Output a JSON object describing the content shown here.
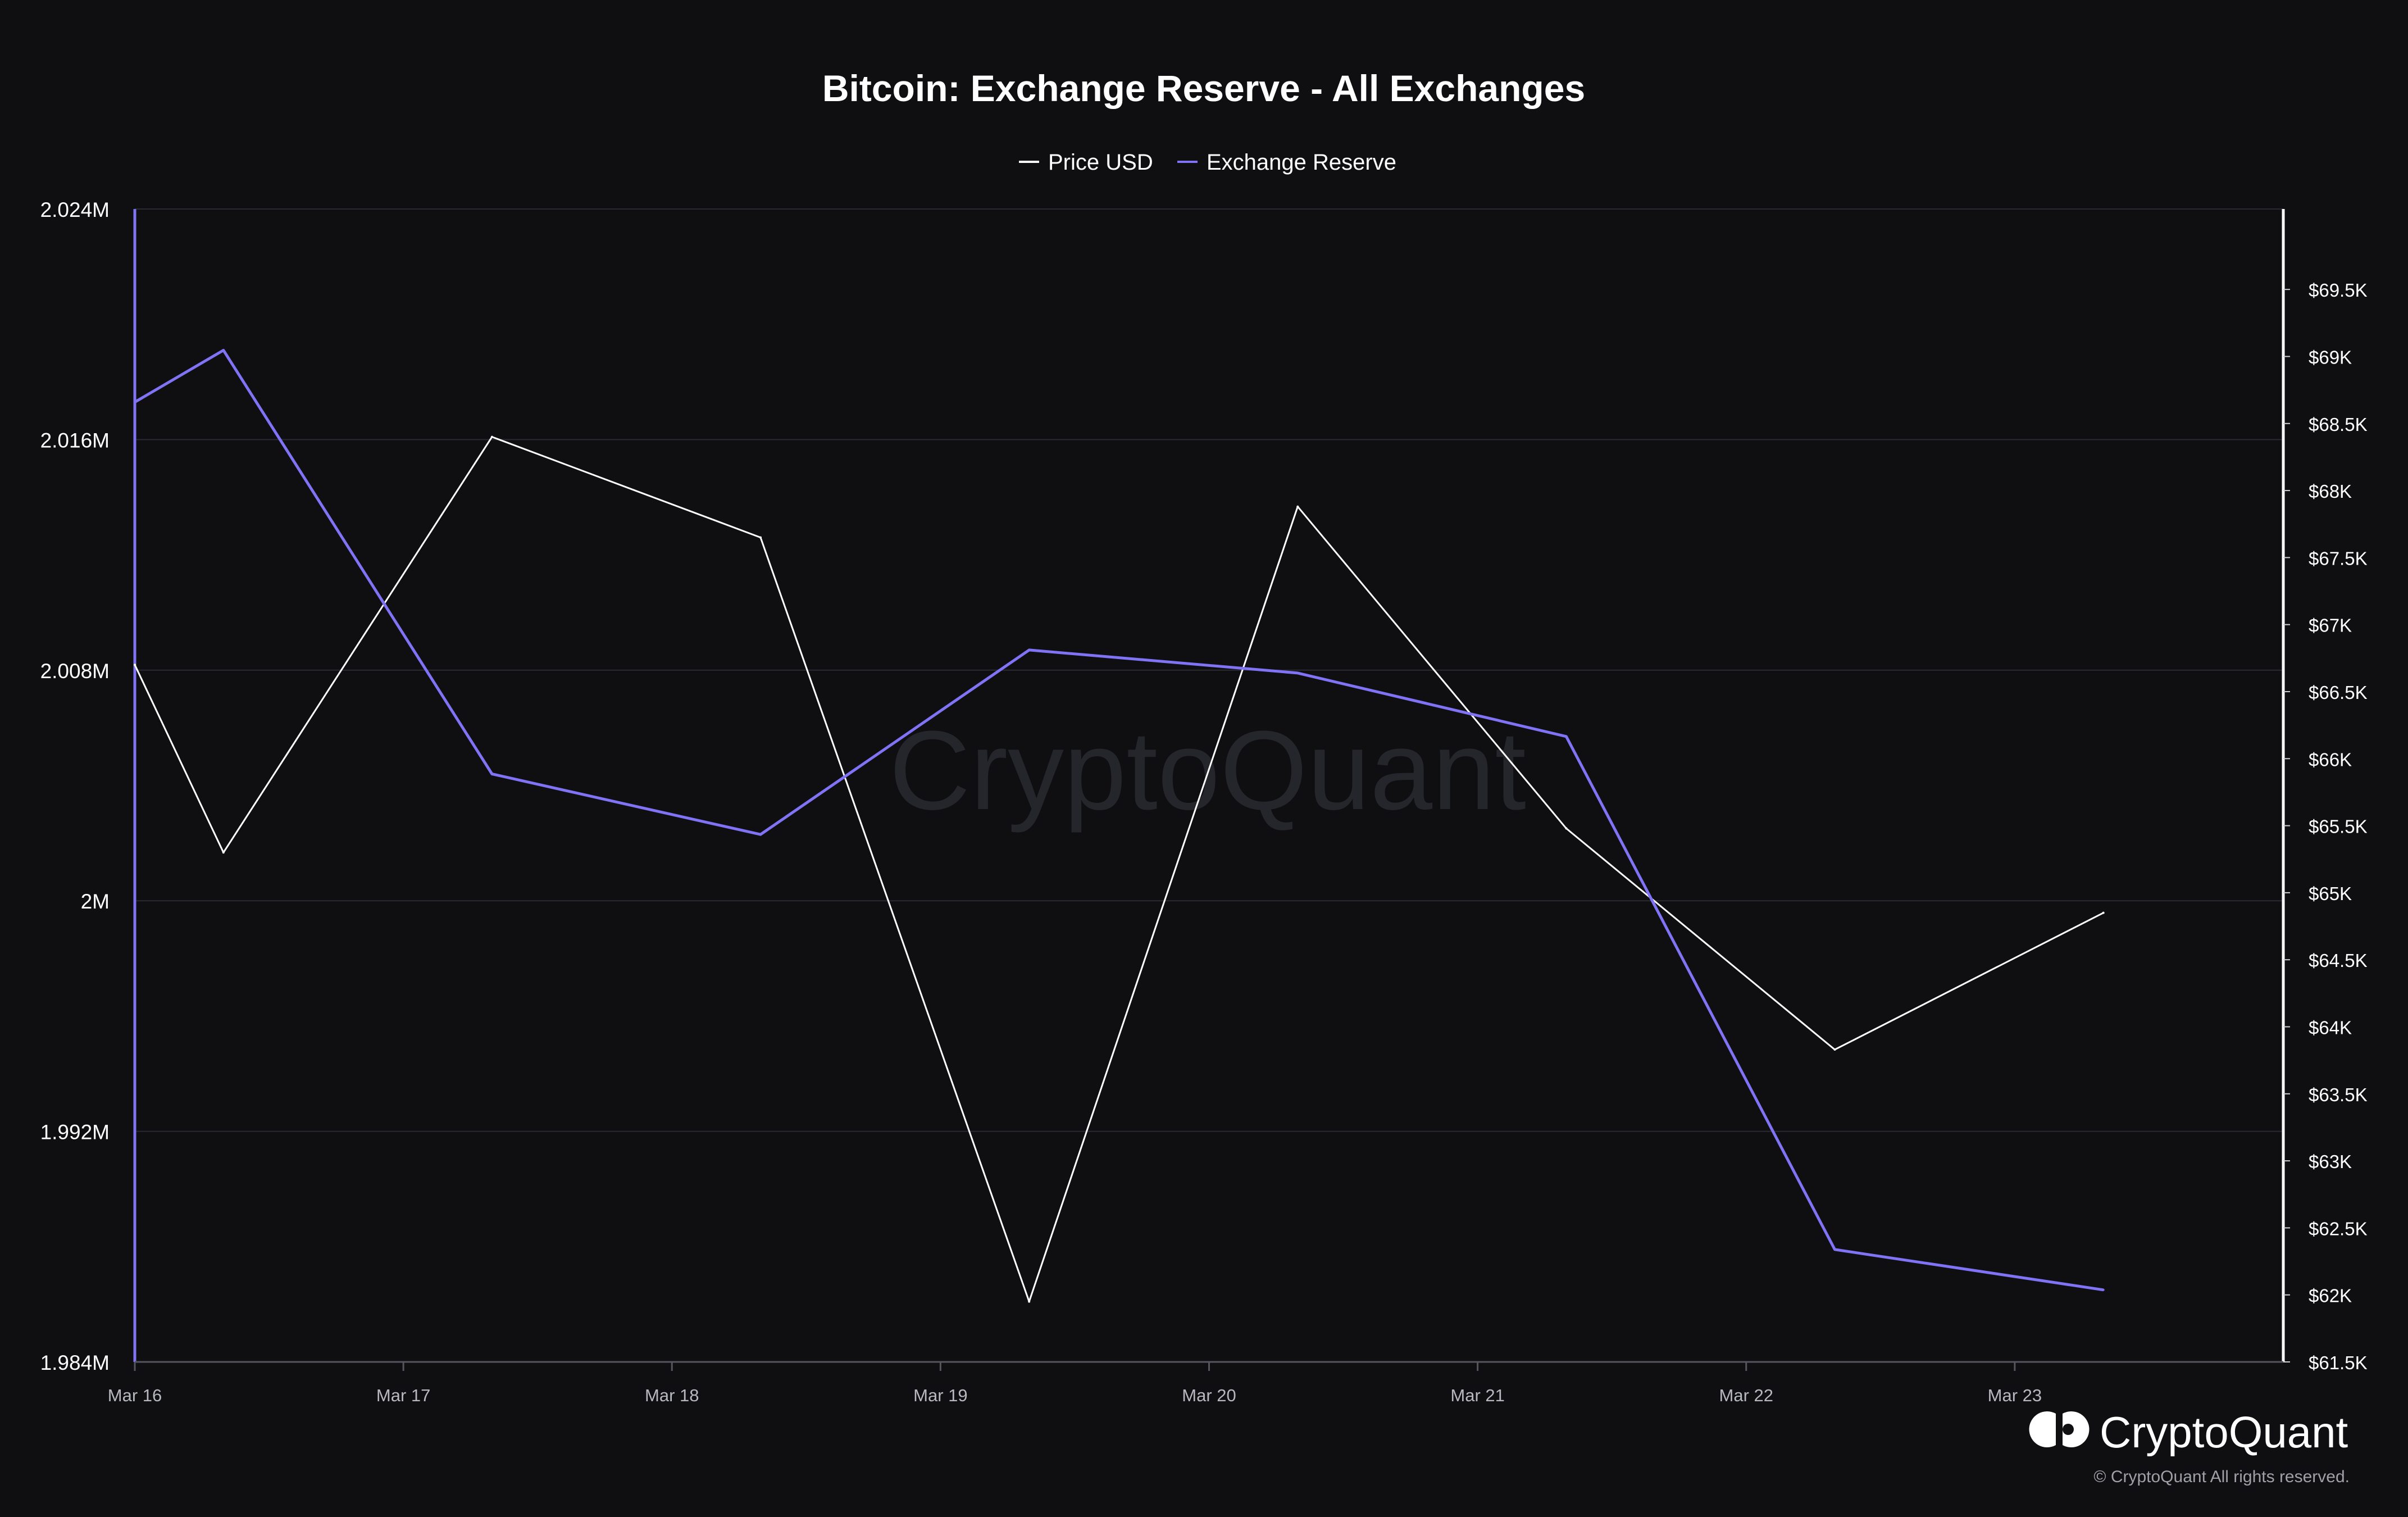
{
  "chart_data": {
    "type": "line",
    "title": "Bitcoin: Exchange Reserve - All Exchanges",
    "legend_position": "top-center",
    "grid": true,
    "x": [
      "Mar 16",
      "Mar 16.33",
      "Mar 17.33",
      "Mar 18.33",
      "Mar 19.33",
      "Mar 20.33",
      "Mar 21.33",
      "Mar 22.33",
      "Mar 23.33"
    ],
    "x_numeric": [
      0,
      0.33,
      1.33,
      2.33,
      3.33,
      4.33,
      5.33,
      6.33,
      7.33
    ],
    "x_range": [
      0,
      8.0
    ],
    "x_ticks": [
      {
        "value": 0,
        "label": "Mar 16"
      },
      {
        "value": 1,
        "label": "Mar 17"
      },
      {
        "value": 2,
        "label": "Mar 18"
      },
      {
        "value": 3,
        "label": "Mar 19"
      },
      {
        "value": 4,
        "label": "Mar 20"
      },
      {
        "value": 5,
        "label": "Mar 21"
      },
      {
        "value": 6,
        "label": "Mar 22"
      },
      {
        "value": 7,
        "label": "Mar 23"
      }
    ],
    "y_left": {
      "range": [
        1.984,
        2.024
      ],
      "ticks": [
        {
          "value": 2.024,
          "label": "2.024M"
        },
        {
          "value": 2.016,
          "label": "2.016M"
        },
        {
          "value": 2.008,
          "label": "2.008M"
        },
        {
          "value": 2.0,
          "label": "2M"
        },
        {
          "value": 1.992,
          "label": "1.992M"
        },
        {
          "value": 1.984,
          "label": "1.984M"
        }
      ]
    },
    "y_right": {
      "range": [
        61500,
        70100
      ],
      "ticks": [
        {
          "value": 69500,
          "label": "$69.5K"
        },
        {
          "value": 69000,
          "label": "$69K"
        },
        {
          "value": 68500,
          "label": "$68.5K"
        },
        {
          "value": 68000,
          "label": "$68K"
        },
        {
          "value": 67500,
          "label": "$67.5K"
        },
        {
          "value": 67000,
          "label": "$67K"
        },
        {
          "value": 66500,
          "label": "$66.5K"
        },
        {
          "value": 66000,
          "label": "$66K"
        },
        {
          "value": 65500,
          "label": "$65.5K"
        },
        {
          "value": 65000,
          "label": "$65K"
        },
        {
          "value": 64500,
          "label": "$64.5K"
        },
        {
          "value": 64000,
          "label": "$64K"
        },
        {
          "value": 63500,
          "label": "$63.5K"
        },
        {
          "value": 63000,
          "label": "$63K"
        },
        {
          "value": 62500,
          "label": "$62.5K"
        },
        {
          "value": 62000,
          "label": "$62K"
        },
        {
          "value": 61500,
          "label": "$61.5K"
        }
      ]
    },
    "series": [
      {
        "name": "Price USD",
        "axis": "right",
        "color": "#ffffff",
        "values": [
          66700,
          65300,
          68400,
          67650,
          61950,
          67880,
          65480,
          63830,
          64850
        ]
      },
      {
        "name": "Exchange Reserve",
        "axis": "left",
        "color": "#8173f5",
        "values": [
          2.0173,
          2.0191,
          2.0044,
          2.0023,
          2.0087,
          2.0079,
          2.0057,
          1.9879,
          1.9865
        ]
      }
    ]
  },
  "watermark": "CryptoQuant",
  "brand": {
    "name": "CryptoQuant",
    "copyright": "© CryptoQuant All rights reserved."
  },
  "colors": {
    "background": "#0f0f12",
    "grid": "#2a2a32",
    "reserve": "#8173f5",
    "price": "#ffffff"
  }
}
